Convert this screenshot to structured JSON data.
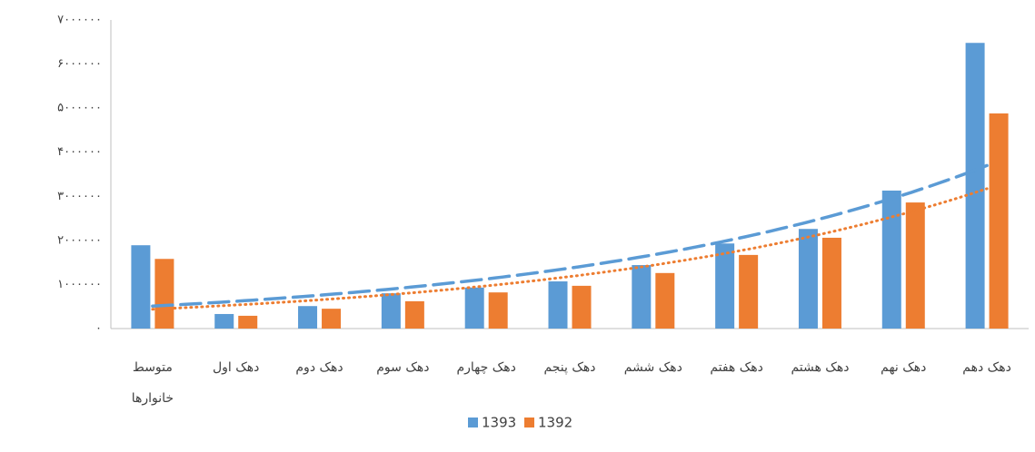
{
  "chart_data": {
    "type": "bar",
    "categories": [
      "متوسط خانوارها",
      "دهک اول",
      "دهک دوم",
      "دهک سوم",
      "دهک چهارم",
      "دهک پنجم",
      "دهک ششم",
      "دهک هفتم",
      "دهک هشتم",
      "دهک نهم",
      "دهک دهم"
    ],
    "series": [
      {
        "name": "1393",
        "color": "#5b9bd5",
        "trendline": "exponential",
        "trendline_style": "dashed",
        "values": [
          1890000,
          330000,
          510000,
          800000,
          930000,
          1070000,
          1440000,
          1930000,
          2260000,
          3130000,
          6480000
        ]
      },
      {
        "name": "1392",
        "color": "#ed7d31",
        "trendline": "exponential",
        "trendline_style": "dotted",
        "values": [
          1580000,
          290000,
          450000,
          620000,
          820000,
          970000,
          1260000,
          1670000,
          2060000,
          2860000,
          4880000
        ]
      }
    ],
    "ylim": [
      0,
      7000000
    ],
    "yticks": [
      {
        "value": 0,
        "label": "۰"
      },
      {
        "value": 1000000,
        "label": "۱۰۰۰۰۰۰"
      },
      {
        "value": 2000000,
        "label": "۲۰۰۰۰۰۰"
      },
      {
        "value": 3000000,
        "label": "۳۰۰۰۰۰۰"
      },
      {
        "value": 4000000,
        "label": "۴۰۰۰۰۰۰"
      },
      {
        "value": 5000000,
        "label": "۵۰۰۰۰۰۰"
      },
      {
        "value": 6000000,
        "label": "۶۰۰۰۰۰۰"
      },
      {
        "value": 7000000,
        "label": "۷۰۰۰۰۰۰"
      }
    ],
    "grid": false,
    "legend": "bottom"
  }
}
